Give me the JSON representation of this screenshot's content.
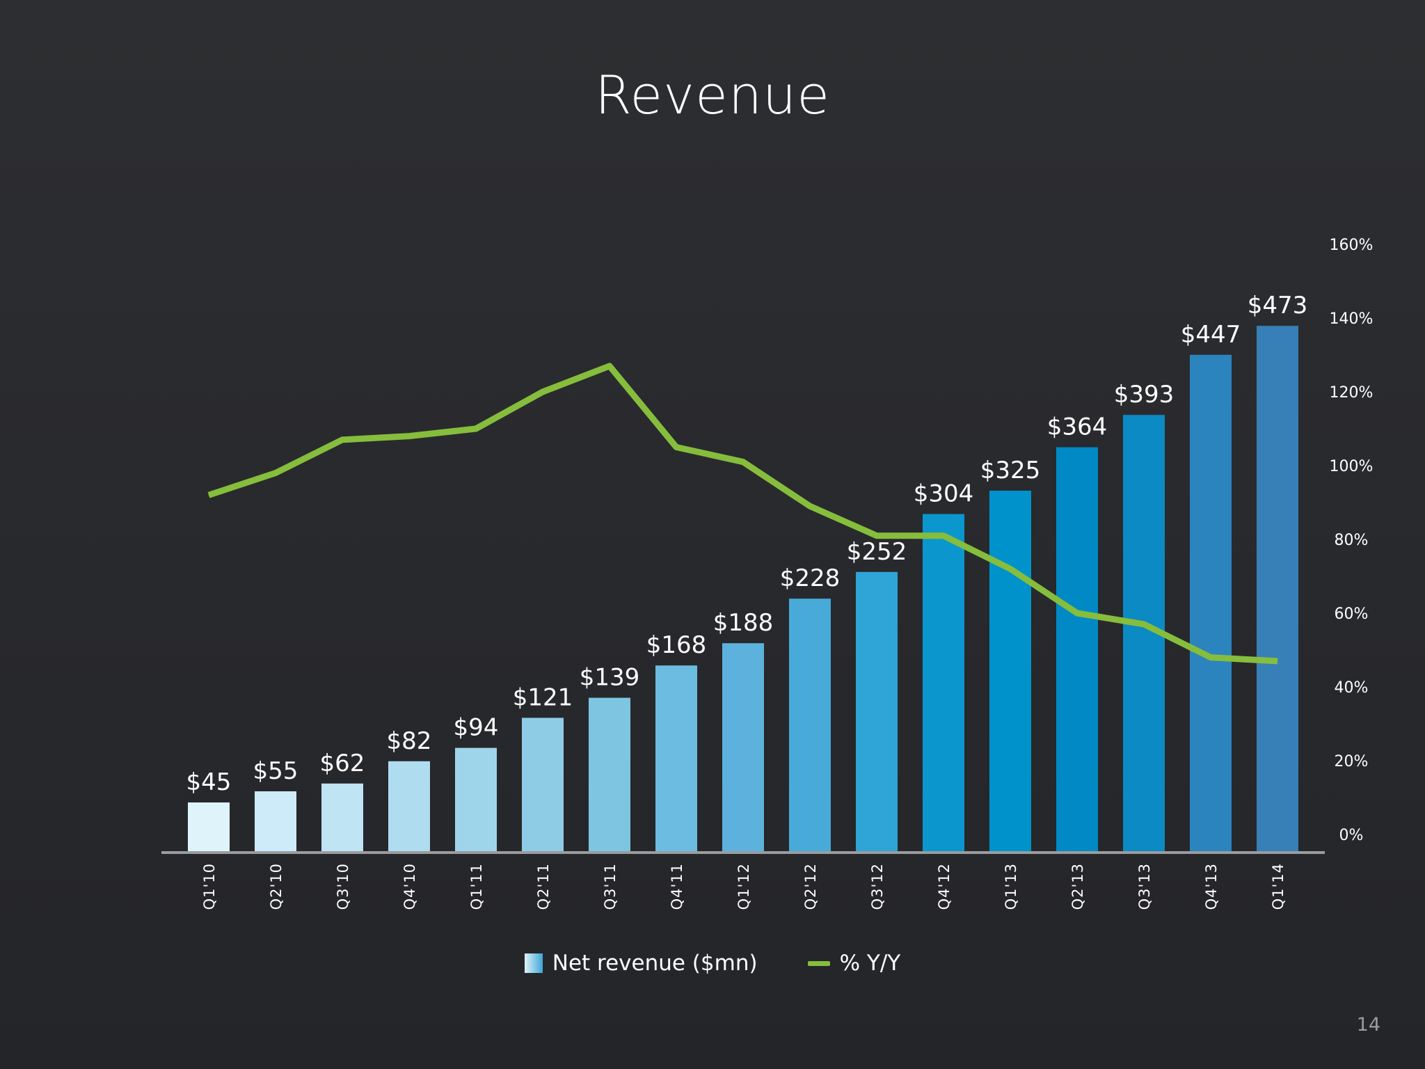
{
  "title": "Revenue",
  "page_number": "14",
  "legend": {
    "bars_label": "Net revenue ($mn)",
    "line_label": "% Y/Y"
  },
  "colors": {
    "background": "#28292c",
    "line": "#86bd3c",
    "axis": "#9a9c9f",
    "bar_light": "#dff3fb",
    "bar_mid": "#0093cb",
    "bar_dark": "#3580b8"
  },
  "chart_data": {
    "type": "bar",
    "title": "Revenue",
    "categories": [
      "Q1'10",
      "Q2'10",
      "Q3'10",
      "Q4'10",
      "Q1'11",
      "Q2'11",
      "Q3'11",
      "Q4'11",
      "Q1'12",
      "Q2'12",
      "Q3'12",
      "Q4'12",
      "Q1'13",
      "Q2'13",
      "Q3'13",
      "Q4'13",
      "Q1'14"
    ],
    "series": [
      {
        "name": "Net revenue ($mn)",
        "type": "bar",
        "axis": "left",
        "values": [
          45,
          55,
          62,
          82,
          94,
          121,
          139,
          168,
          188,
          228,
          252,
          304,
          325,
          364,
          393,
          447,
          473
        ],
        "labels": [
          "$45",
          "$55",
          "$62",
          "$82",
          "$94",
          "$121",
          "$139",
          "$168",
          "$188",
          "$228",
          "$252",
          "$304",
          "$325",
          "$364",
          "$393",
          "$447",
          "$473"
        ],
        "bar_colors": [
          "#dff3fb",
          "#cdebf8",
          "#bfe4f4",
          "#afdcef",
          "#9fd5ea",
          "#8ecce6",
          "#7dc5e1",
          "#6cbbe0",
          "#5cb2dc",
          "#47aad9",
          "#2fa4d6",
          "#0b97cd",
          "#0092ca",
          "#0089c5",
          "#0b8ac3",
          "#2b84bd",
          "#3680b7"
        ]
      },
      {
        "name": "% Y/Y",
        "type": "line",
        "axis": "right",
        "values": [
          92,
          98,
          107,
          108,
          110,
          120,
          127,
          105,
          101,
          89,
          81,
          81,
          72,
          60,
          57,
          48,
          47
        ]
      }
    ],
    "y_right": {
      "ticks": [
        "0%",
        "20%",
        "40%",
        "60%",
        "80%",
        "100%",
        "120%",
        "140%",
        "160%"
      ],
      "range": [
        0,
        160
      ]
    },
    "grid": false,
    "legend_position": "bottom-center"
  }
}
